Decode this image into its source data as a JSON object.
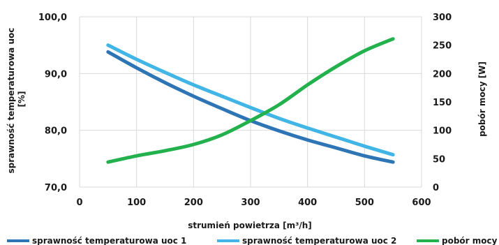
{
  "chart_data": {
    "type": "line",
    "xlabel": "strumień powietrza [m³/h]",
    "ylabel_left": "sprawność temperaturowa uoc [%]",
    "ylabel_left_lines": [
      "sprawność temperaturowa uoc",
      "[%]"
    ],
    "ylabel_right": "pobór mocy [W]",
    "xlim": [
      0,
      600
    ],
    "ylim_left": [
      70,
      100
    ],
    "ylim_right": [
      0,
      300
    ],
    "x_ticks": [
      "0",
      "100",
      "200",
      "300",
      "400",
      "500",
      "600"
    ],
    "y_left_ticks": [
      "70,0",
      "80,0",
      "90,0",
      "100,0"
    ],
    "y_right_ticks": [
      "0",
      "50",
      "100",
      "150",
      "200",
      "250",
      "300"
    ],
    "grid": true,
    "legend_position": "bottom",
    "series": [
      {
        "name": "sprawność temperaturowa uoc 1",
        "axis": "left",
        "color": "#2e75b6",
        "x": [
          50,
          100,
          150,
          200,
          250,
          300,
          350,
          400,
          450,
          500,
          550
        ],
        "y": [
          93.8,
          91.0,
          88.4,
          86.0,
          83.8,
          81.7,
          79.9,
          78.3,
          76.9,
          75.5,
          74.4
        ]
      },
      {
        "name": "sprawność temperaturowa uoc 2",
        "axis": "left",
        "color": "#41b6e6",
        "x": [
          50,
          100,
          150,
          200,
          250,
          300,
          350,
          400,
          450,
          500,
          550
        ],
        "y": [
          95.0,
          92.5,
          90.2,
          88.0,
          86.0,
          84.0,
          82.1,
          80.4,
          78.8,
          77.2,
          75.7
        ]
      },
      {
        "name": "pobór mocy",
        "axis": "right",
        "color": "#22b14c",
        "x": [
          50,
          100,
          150,
          200,
          250,
          300,
          350,
          400,
          450,
          500,
          550
        ],
        "y": [
          44,
          55,
          64,
          75,
          92,
          117,
          145,
          180,
          212,
          240,
          261
        ]
      }
    ]
  }
}
